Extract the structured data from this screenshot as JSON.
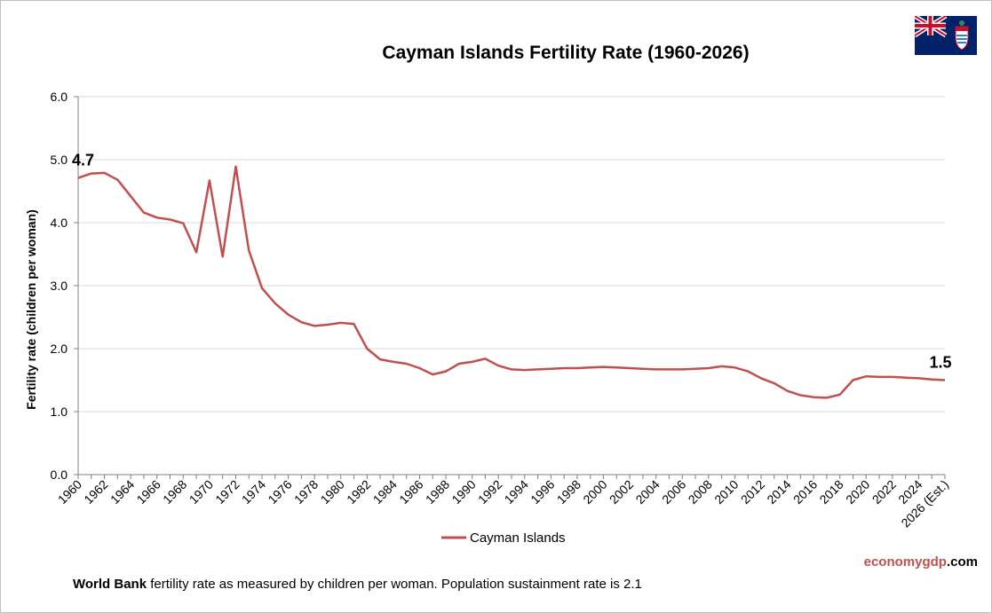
{
  "chart_data": {
    "type": "line",
    "title": "Cayman Islands Fertility Rate (1960-2026)",
    "ylabel": "Fertility rate (children per woman)",
    "xlabel": "",
    "ylim": [
      0,
      6
    ],
    "yticks": [
      "0.0",
      "1.0",
      "2.0",
      "3.0",
      "4.0",
      "5.0",
      "6.0"
    ],
    "grid": true,
    "legend_position": "bottom",
    "x": [
      1960,
      1961,
      1962,
      1963,
      1964,
      1965,
      1966,
      1967,
      1968,
      1969,
      1970,
      1971,
      1972,
      1973,
      1974,
      1975,
      1976,
      1977,
      1978,
      1979,
      1980,
      1981,
      1982,
      1983,
      1984,
      1985,
      1986,
      1987,
      1988,
      1989,
      1990,
      1991,
      1992,
      1993,
      1994,
      1995,
      1996,
      1997,
      1998,
      1999,
      2000,
      2001,
      2002,
      2003,
      2004,
      2005,
      2006,
      2007,
      2008,
      2009,
      2010,
      2011,
      2012,
      2013,
      2014,
      2015,
      2016,
      2017,
      2018,
      2019,
      2020,
      2021,
      2022,
      2023,
      2024,
      2025,
      2026
    ],
    "x_tick_labels": [
      "1960",
      "1962",
      "1964",
      "1966",
      "1968",
      "1970",
      "1972",
      "1974",
      "1976",
      "1978",
      "1980",
      "1982",
      "1984",
      "1986",
      "1988",
      "1990",
      "1992",
      "1994",
      "1996",
      "1998",
      "2000",
      "2002",
      "2004",
      "2006",
      "2008",
      "2010",
      "2012",
      "2014",
      "2016",
      "2018",
      "2020",
      "2022",
      "2024",
      "2026 (Est.)"
    ],
    "series": [
      {
        "name": "Cayman Islands",
        "color": "#c0504d",
        "values": [
          4.71,
          4.78,
          4.79,
          4.68,
          4.42,
          4.16,
          4.08,
          4.05,
          3.99,
          3.53,
          4.67,
          3.46,
          4.89,
          3.56,
          2.96,
          2.72,
          2.54,
          2.42,
          2.36,
          2.38,
          2.41,
          2.39,
          2.0,
          1.83,
          1.79,
          1.76,
          1.69,
          1.59,
          1.64,
          1.76,
          1.79,
          1.84,
          1.73,
          1.67,
          1.66,
          1.67,
          1.68,
          1.69,
          1.69,
          1.7,
          1.71,
          1.7,
          1.69,
          1.68,
          1.67,
          1.67,
          1.67,
          1.68,
          1.69,
          1.72,
          1.7,
          1.64,
          1.53,
          1.45,
          1.33,
          1.26,
          1.23,
          1.22,
          1.27,
          1.5,
          1.56,
          1.55,
          1.55,
          1.54,
          1.53,
          1.51,
          1.5
        ]
      }
    ],
    "annotations": {
      "start_label": "4.7",
      "end_label": "1.5"
    }
  },
  "footer": {
    "source_bold": "World Bank",
    "note": " fertility rate as measured by children per woman.  Population sustainment  rate is 2.1"
  },
  "brand": {
    "part1": "economy",
    "part2": "gdp",
    "part3": ".com"
  },
  "flag_icon": "cayman-islands-flag-icon"
}
